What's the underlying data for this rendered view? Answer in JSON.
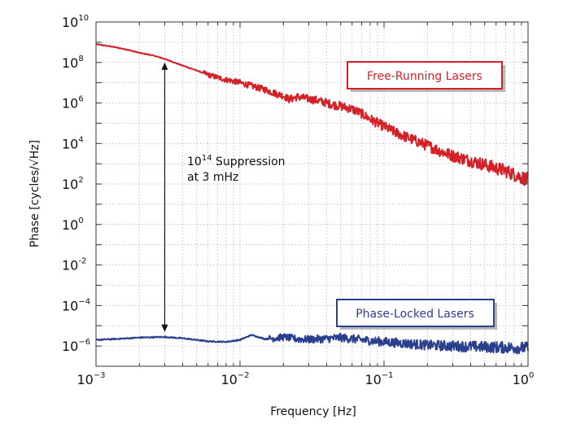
{
  "chart_data": {
    "type": "line",
    "xlabel": "Frequency [Hz]",
    "ylabel": "Phase [cycles/√Hz]",
    "xscale": "log",
    "yscale": "log",
    "xlim": [
      0.001,
      1
    ],
    "ylim": [
      1e-07,
      10000000000.0
    ],
    "grid": true,
    "x_ticks": [
      {
        "base": "10",
        "exp": "−3",
        "value": 0.001
      },
      {
        "base": "10",
        "exp": "−2",
        "value": 0.01
      },
      {
        "base": "10",
        "exp": "−1",
        "value": 0.1
      },
      {
        "base": "10",
        "exp": "0",
        "value": 1
      }
    ],
    "y_ticks": [
      {
        "base": "10",
        "exp": "10",
        "value": 10000000000.0
      },
      {
        "base": "10",
        "exp": "8",
        "value": 100000000.0
      },
      {
        "base": "10",
        "exp": "6",
        "value": 1000000.0
      },
      {
        "base": "10",
        "exp": "4",
        "value": 10000.0
      },
      {
        "base": "10",
        "exp": "2",
        "value": 100.0
      },
      {
        "base": "10",
        "exp": "0",
        "value": 1
      },
      {
        "base": "10",
        "exp": "-2",
        "value": 0.01
      },
      {
        "base": "10",
        "exp": "−4",
        "value": 0.0001
      },
      {
        "base": "10",
        "exp": "−6",
        "value": 1e-06
      }
    ],
    "series": [
      {
        "name": "Free-Running Lasers",
        "color": "#d42027",
        "x": [
          0.001,
          0.0013,
          0.0016,
          0.002,
          0.0025,
          0.003,
          0.004,
          0.005,
          0.006,
          0.007,
          0.008,
          0.009,
          0.01,
          0.012,
          0.015,
          0.018,
          0.02,
          0.022,
          0.025,
          0.03,
          0.035,
          0.04,
          0.045,
          0.05,
          0.06,
          0.07,
          0.08,
          0.1,
          0.12,
          0.15,
          0.2,
          0.25,
          0.3,
          0.4,
          0.5,
          0.6,
          0.7,
          0.8,
          1.0
        ],
        "y": [
          800000000.0,
          600000000.0,
          450000000.0,
          300000000.0,
          220000000.0,
          150000000.0,
          70000000.0,
          40000000.0,
          25000000.0,
          18000000.0,
          14000000.0,
          12000000.0,
          10000000.0,
          7000000.0,
          4500000.0,
          2800000.0,
          2300000.0,
          1500000.0,
          2000000.0,
          1600000.0,
          1300000.0,
          1000000.0,
          800000.0,
          700000.0,
          500000.0,
          300000.0,
          160000.0,
          70000.0,
          35000.0,
          18000.0,
          8000.0,
          4000.0,
          2500.0,
          1400.0,
          900.0,
          600.0,
          450.0,
          300.0,
          160.0
        ]
      },
      {
        "name": "Phase-Locked Lasers",
        "color": "#2b3f8f",
        "x": [
          0.001,
          0.0015,
          0.002,
          0.003,
          0.004,
          0.005,
          0.006,
          0.008,
          0.01,
          0.012,
          0.015,
          0.018,
          0.02,
          0.025,
          0.03,
          0.04,
          0.05,
          0.07,
          0.1,
          0.15,
          0.2,
          0.3,
          0.5,
          0.7,
          1.0
        ],
        "y": [
          2e-06,
          2.3e-06,
          2.6e-06,
          2.8e-06,
          2.4e-06,
          2e-06,
          1.7e-06,
          1.6e-06,
          2e-06,
          3.5e-06,
          2.2e-06,
          2.5e-06,
          2.8e-06,
          2.2e-06,
          2.1e-06,
          2.3e-06,
          2.6e-06,
          2e-06,
          1.6e-06,
          1.3e-06,
          1.1e-06,
          1e-06,
          9e-07,
          8.5e-07,
          8e-07
        ]
      }
    ],
    "annotation": {
      "base": "10",
      "exp": "14",
      "line1_rest": " Suppression",
      "line2": "at 3 mHz",
      "arrow_x": 0.003,
      "arrow_y_top": 100000000.0,
      "arrow_y_bottom": 5e-06
    },
    "legend_free": {
      "label": "Free-Running Lasers",
      "color": "#d42027"
    },
    "legend_locked": {
      "label": "Phase-Locked Lasers",
      "color": "#2b3f8f"
    }
  }
}
